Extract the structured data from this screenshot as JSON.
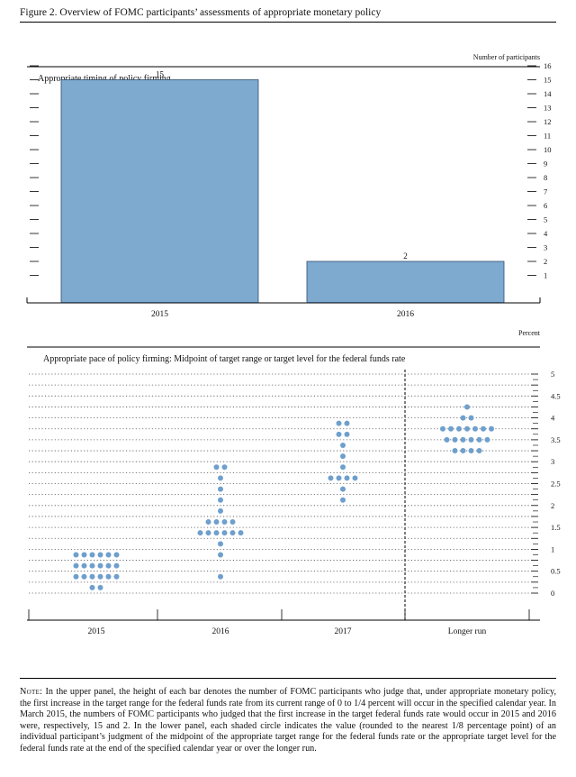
{
  "figure": {
    "title": "Figure 2. Overview of FOMC participants’ assessments of appropriate monetary policy"
  },
  "colors": {
    "bar": "#7faad0",
    "dot": "#6f9fcc"
  },
  "chart_data": [
    {
      "type": "bar",
      "title": "Appropriate timing of policy firming",
      "ylabel": "Number of participants",
      "categories": [
        "2015",
        "2016"
      ],
      "values": [
        15,
        2
      ],
      "ylim": [
        0,
        16
      ],
      "yticks": [
        "1",
        "2",
        "3",
        "4",
        "5",
        "6",
        "7",
        "8",
        "9",
        "10",
        "11",
        "12",
        "13",
        "14",
        "15",
        "16"
      ],
      "grid": false,
      "data_labels": true
    },
    {
      "type": "scatter",
      "title": "Appropriate pace of policy firming: Midpoint of target range or target level for the federal funds rate",
      "ylabel": "Percent",
      "categories": [
        "2015",
        "2016",
        "2017",
        "Longer run"
      ],
      "ylim": [
        0,
        5
      ],
      "yticks": [
        "0",
        "0.5",
        "1",
        "1.5",
        "2",
        "2.5",
        "3",
        "3.5",
        "4",
        "4.5",
        "5"
      ],
      "grid": true,
      "dots": [
        {
          "x": "2015",
          "y": 0.125,
          "count": 2
        },
        {
          "x": "2015",
          "y": 0.375,
          "count": 6
        },
        {
          "x": "2015",
          "y": 0.625,
          "count": 6
        },
        {
          "x": "2015",
          "y": 0.875,
          "count": 6
        },
        {
          "x": "2016",
          "y": 0.375,
          "count": 1
        },
        {
          "x": "2016",
          "y": 0.875,
          "count": 1
        },
        {
          "x": "2016",
          "y": 1.125,
          "count": 1
        },
        {
          "x": "2016",
          "y": 1.375,
          "count": 6
        },
        {
          "x": "2016",
          "y": 1.625,
          "count": 4
        },
        {
          "x": "2016",
          "y": 1.875,
          "count": 1
        },
        {
          "x": "2016",
          "y": 2.125,
          "count": 1
        },
        {
          "x": "2016",
          "y": 2.375,
          "count": 1
        },
        {
          "x": "2016",
          "y": 2.625,
          "count": 1
        },
        {
          "x": "2016",
          "y": 2.875,
          "count": 2
        },
        {
          "x": "2017",
          "y": 2.125,
          "count": 1
        },
        {
          "x": "2017",
          "y": 2.375,
          "count": 1
        },
        {
          "x": "2017",
          "y": 2.625,
          "count": 4
        },
        {
          "x": "2017",
          "y": 2.875,
          "count": 1
        },
        {
          "x": "2017",
          "y": 3.125,
          "count": 1
        },
        {
          "x": "2017",
          "y": 3.375,
          "count": 1
        },
        {
          "x": "2017",
          "y": 3.625,
          "count": 2
        },
        {
          "x": "2017",
          "y": 3.875,
          "count": 2
        },
        {
          "x": "Longer run",
          "y": 3.25,
          "count": 4
        },
        {
          "x": "Longer run",
          "y": 3.5,
          "count": 6
        },
        {
          "x": "Longer run",
          "y": 3.75,
          "count": 7
        },
        {
          "x": "Longer run",
          "y": 4.0,
          "count": 2
        },
        {
          "x": "Longer run",
          "y": 4.25,
          "count": 1
        }
      ]
    }
  ],
  "note": {
    "lead": "Note:",
    "body": "In the upper panel, the height of each bar denotes the number of FOMC participants who judge that, under appropriate monetary policy, the first increase in the target range for the federal funds rate from its current range of 0 to 1/4 percent will occur in the specified calendar year. In March 2015, the numbers of FOMC participants who judged that the first increase in the target federal funds rate would occur in 2015 and 2016 were, respectively, 15 and 2. In the lower panel, each shaded circle indicates the value (rounded to the nearest 1/8 percentage point) of an individual participant’s judgment of the midpoint of the appropriate target range for the federal funds rate or the appropriate target level for the federal funds rate at the end of the specified calendar year or over the longer run."
  }
}
